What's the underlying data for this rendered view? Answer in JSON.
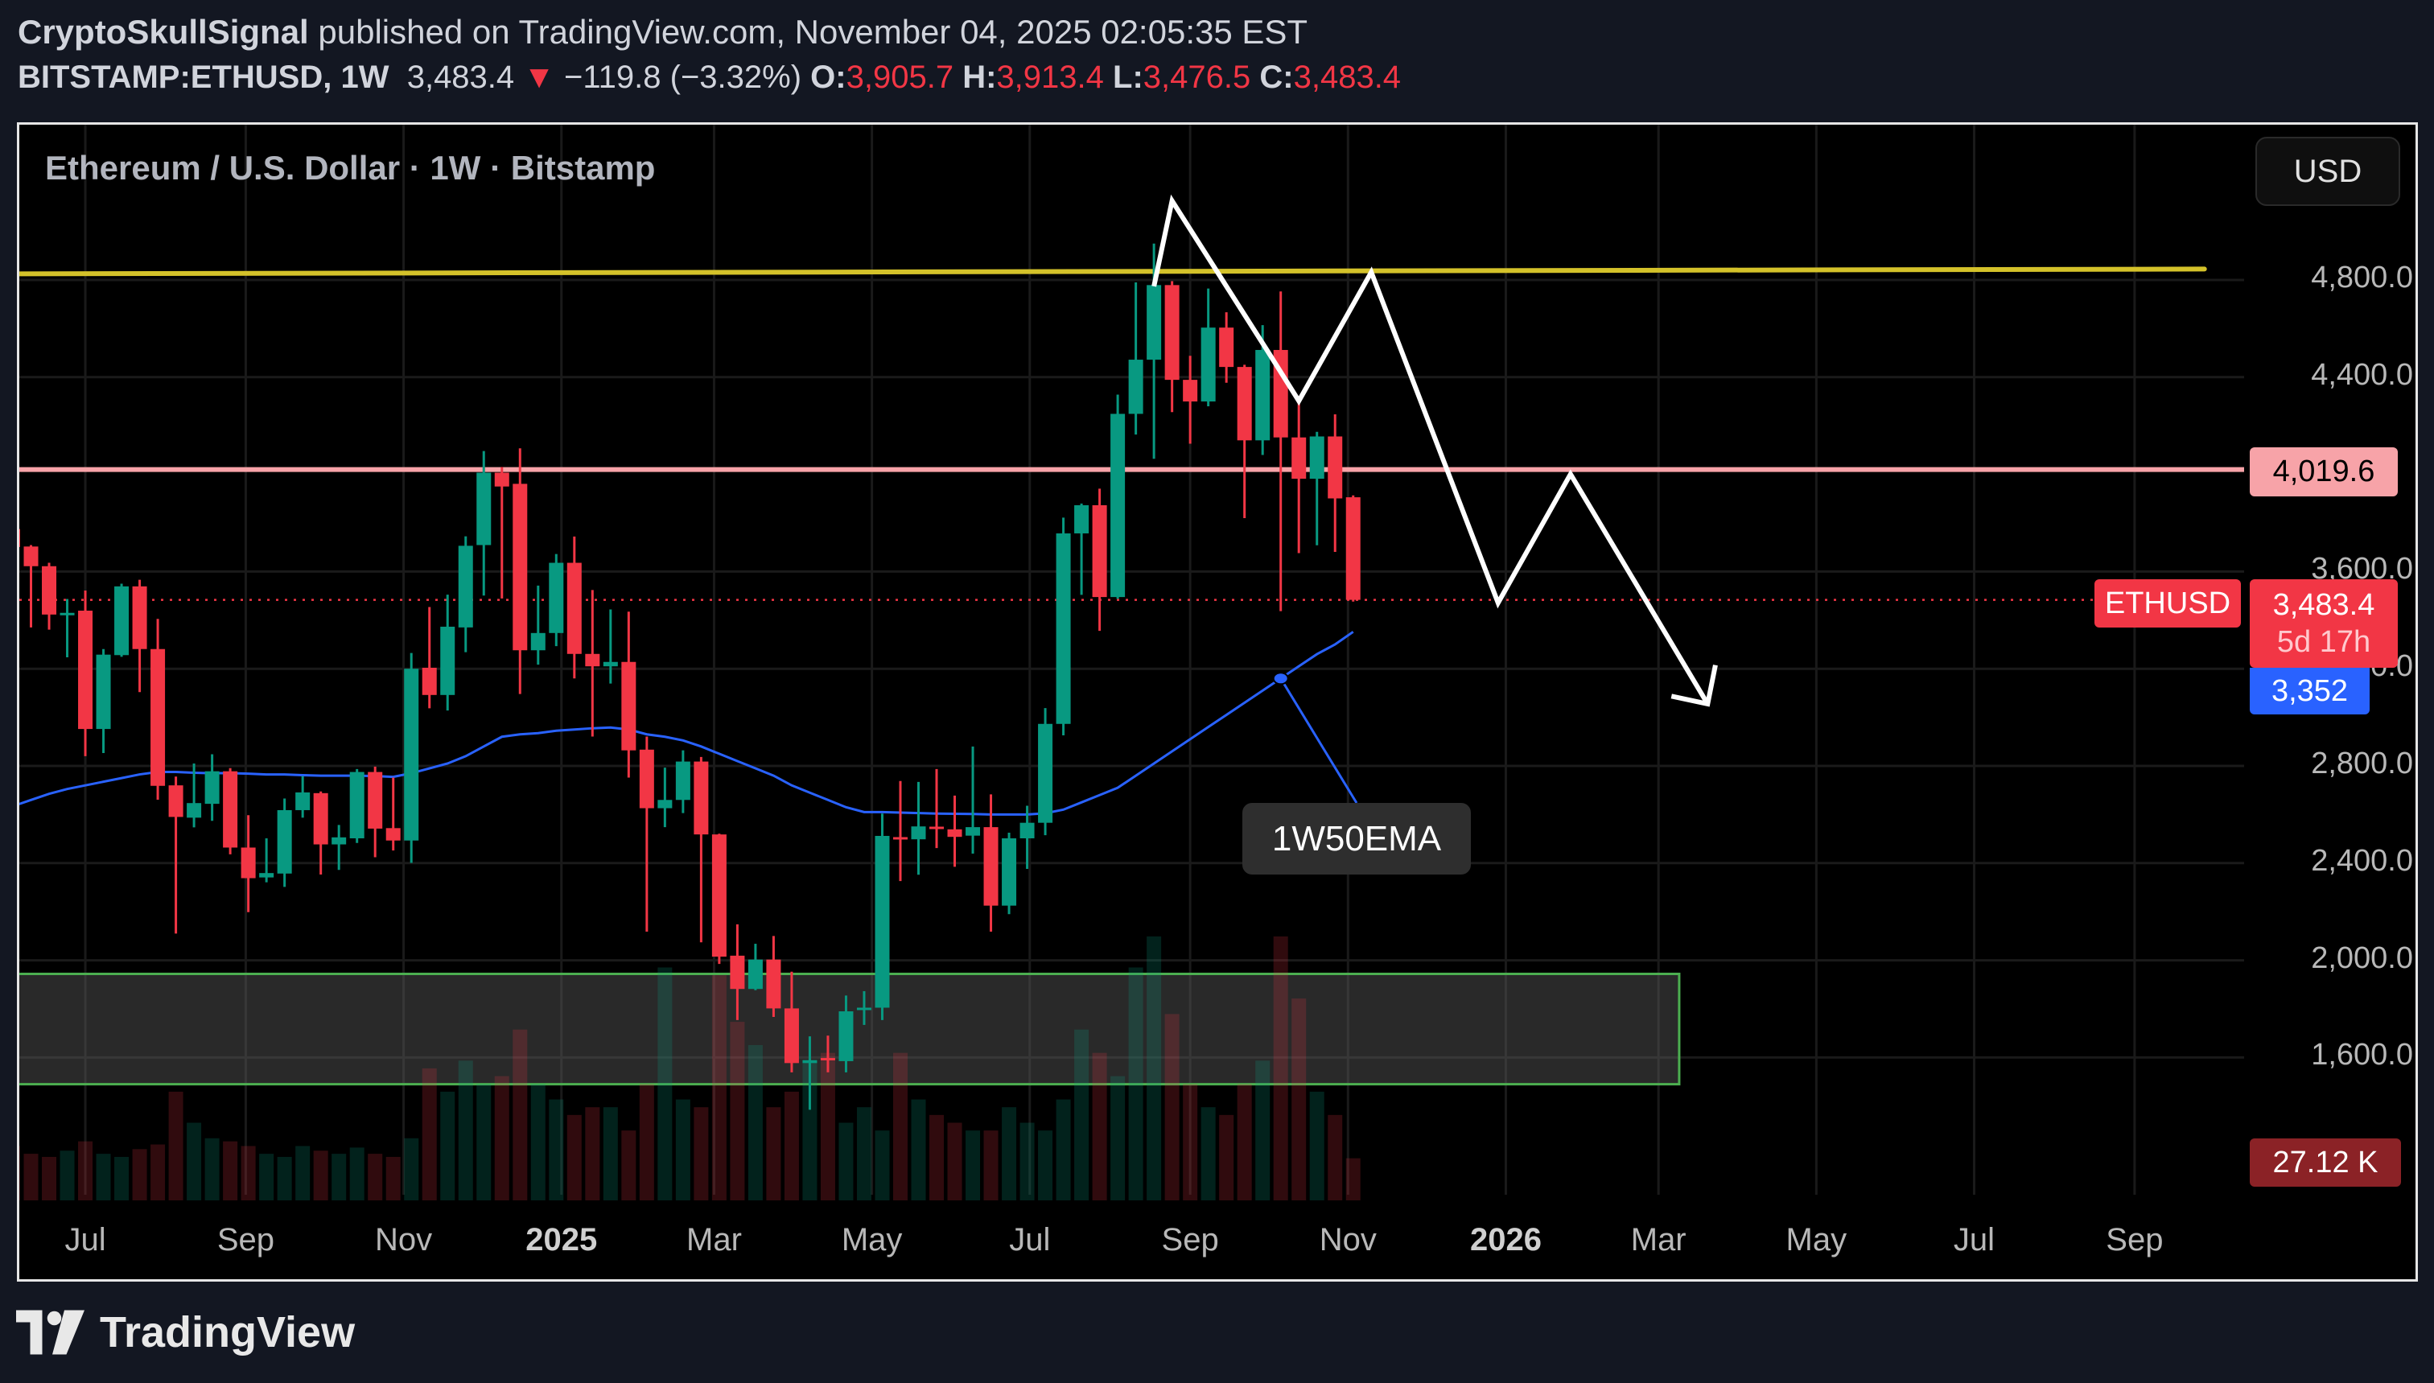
{
  "header": {
    "author": "CryptoSkullSignal",
    "published_text": "published on TradingView.com, November 04, 2025 02:05:35 EST",
    "symbol": "BITSTAMP:ETHUSD, 1W",
    "last": "3,483.4",
    "change": "−119.8 (−3.32%)",
    "o_label": "O:",
    "o": "3,905.7",
    "h_label": "H:",
    "h": "3,913.4",
    "l_label": "L:",
    "l": "3,476.5",
    "c_label": "C:",
    "c": "3,483.4",
    "down_arrow": "▼"
  },
  "chart_title": "Ethereum / U.S. Dollar · 1W · Bitstamp",
  "currency_button": "USD",
  "price_labels": {
    "resistance": "4,019.6",
    "symbol_tag": "ETHUSD",
    "current": "3,483.4",
    "countdown": "5d 17h",
    "ema": "3,352",
    "volume": "27.12 K"
  },
  "annotation_label": "1W50EMA",
  "footer": {
    "brand": "TradingView"
  },
  "colors": {
    "up": "#089981",
    "down": "#f23645",
    "ema": "#2962ff",
    "resistance": "#f7a3a8",
    "top_line": "#d4c22a",
    "zone_border": "#4caf50",
    "drawing": "#ffffff",
    "background": "#000000",
    "header_bg": "#131722"
  },
  "chart_data": {
    "type": "candlestick",
    "title": "Ethereum / U.S. Dollar · 1W · Bitstamp",
    "interval": "1W",
    "ylim": [
      1050,
      5250
    ],
    "grid": true,
    "price_ticks": [
      "4,800.0",
      "4,400.0",
      "3,600.0",
      "3,200.0",
      "2,800.0",
      "2,400.0",
      "2,000.0",
      "1,600.0"
    ],
    "price_tick_values": [
      4800,
      4400,
      3600,
      3200,
      2800,
      2400,
      2000,
      1600
    ],
    "time_ticks": [
      {
        "label": "Jul",
        "date": "2024-07-01"
      },
      {
        "label": "Sep",
        "date": "2024-09-01"
      },
      {
        "label": "Nov",
        "date": "2024-11-01"
      },
      {
        "label": "2025",
        "date": "2025-01-01",
        "bold": true
      },
      {
        "label": "Mar",
        "date": "2025-03-01"
      },
      {
        "label": "May",
        "date": "2025-05-01"
      },
      {
        "label": "Jul",
        "date": "2025-07-01"
      },
      {
        "label": "Sep",
        "date": "2025-09-01"
      },
      {
        "label": "Nov",
        "date": "2025-11-01"
      },
      {
        "label": "2026",
        "date": "2026-01-01",
        "bold": true
      },
      {
        "label": "Mar",
        "date": "2026-03-01"
      },
      {
        "label": "May",
        "date": "2026-05-01"
      },
      {
        "label": "Jul",
        "date": "2026-07-01"
      },
      {
        "label": "Sep",
        "date": "2026-09-01"
      }
    ],
    "candles_columns": [
      "date",
      "open",
      "high",
      "low",
      "close"
    ],
    "candles": [
      [
        "2024-06-03",
        3775,
        3880,
        3589,
        3701
      ],
      [
        "2024-06-10",
        3703,
        3709,
        3370,
        3622
      ],
      [
        "2024-06-17",
        3622,
        3636,
        3361,
        3423
      ],
      [
        "2024-06-24",
        3423,
        3487,
        3247,
        3430
      ],
      [
        "2024-07-01",
        3439,
        3522,
        2840,
        2952
      ],
      [
        "2024-07-08",
        2952,
        3281,
        2853,
        3258
      ],
      [
        "2024-07-15",
        3256,
        3550,
        3249,
        3539
      ],
      [
        "2024-07-22",
        3539,
        3566,
        3104,
        3281
      ],
      [
        "2024-07-29",
        3281,
        3405,
        2661,
        2718
      ],
      [
        "2024-08-05",
        2720,
        2756,
        2110,
        2590
      ],
      [
        "2024-08-12",
        2587,
        2810,
        2547,
        2647
      ],
      [
        "2024-08-19",
        2644,
        2848,
        2574,
        2778
      ],
      [
        "2024-08-26",
        2778,
        2791,
        2436,
        2464
      ],
      [
        "2024-09-02",
        2464,
        2597,
        2198,
        2338
      ],
      [
        "2024-09-09",
        2341,
        2502,
        2321,
        2359
      ],
      [
        "2024-09-16",
        2357,
        2666,
        2302,
        2618
      ],
      [
        "2024-09-23",
        2618,
        2758,
        2587,
        2691
      ],
      [
        "2024-09-30",
        2688,
        2695,
        2353,
        2477
      ],
      [
        "2024-10-07",
        2477,
        2557,
        2372,
        2506
      ],
      [
        "2024-10-14",
        2502,
        2787,
        2483,
        2775
      ],
      [
        "2024-10-21",
        2775,
        2797,
        2424,
        2542
      ],
      [
        "2024-10-28",
        2544,
        2752,
        2452,
        2493
      ],
      [
        "2024-11-04",
        2493,
        3265,
        2401,
        3200
      ],
      [
        "2024-11-11",
        3204,
        3454,
        3037,
        3092
      ],
      [
        "2024-11-18",
        3092,
        3505,
        3028,
        3373
      ],
      [
        "2024-11-25",
        3370,
        3745,
        3268,
        3706
      ],
      [
        "2024-12-02",
        3709,
        4096,
        3501,
        4007
      ],
      [
        "2024-12-09",
        4007,
        4030,
        3489,
        3950
      ],
      [
        "2024-12-16",
        3961,
        4107,
        3096,
        3276
      ],
      [
        "2024-12-23",
        3276,
        3542,
        3217,
        3347
      ],
      [
        "2024-12-30",
        3347,
        3672,
        3293,
        3636
      ],
      [
        "2025-01-06",
        3636,
        3744,
        3160,
        3261
      ],
      [
        "2025-01-13",
        3261,
        3524,
        2921,
        3210
      ],
      [
        "2025-01-20",
        3210,
        3444,
        3139,
        3228
      ],
      [
        "2025-01-27",
        3228,
        3435,
        2752,
        2864
      ],
      [
        "2025-02-03",
        2867,
        2921,
        2118,
        2626
      ],
      [
        "2025-02-10",
        2626,
        2793,
        2548,
        2660
      ],
      [
        "2025-02-17",
        2660,
        2864,
        2606,
        2818
      ],
      [
        "2025-02-24",
        2818,
        2837,
        2074,
        2518
      ],
      [
        "2025-03-03",
        2518,
        2521,
        1985,
        2015
      ],
      [
        "2025-03-10",
        2019,
        2148,
        1754,
        1882
      ],
      [
        "2025-03-17",
        1882,
        2068,
        1877,
        2003
      ],
      [
        "2025-03-24",
        2003,
        2100,
        1767,
        1802
      ],
      [
        "2025-03-31",
        1802,
        1953,
        1539,
        1577
      ],
      [
        "2025-04-07",
        1577,
        1687,
        1385,
        1589
      ],
      [
        "2025-04-14",
        1598,
        1690,
        1539,
        1592
      ],
      [
        "2025-04-21",
        1585,
        1855,
        1539,
        1790
      ],
      [
        "2025-04-28",
        1798,
        1873,
        1734,
        1805
      ],
      [
        "2025-05-05",
        1805,
        2604,
        1754,
        2512
      ],
      [
        "2025-05-12",
        2507,
        2738,
        2326,
        2503
      ],
      [
        "2025-05-19",
        2498,
        2734,
        2352,
        2551
      ],
      [
        "2025-05-26",
        2550,
        2787,
        2462,
        2543
      ],
      [
        "2025-06-02",
        2539,
        2678,
        2385,
        2508
      ],
      [
        "2025-06-09",
        2513,
        2880,
        2439,
        2548
      ],
      [
        "2025-06-16",
        2548,
        2683,
        2118,
        2225
      ],
      [
        "2025-06-23",
        2225,
        2525,
        2190,
        2502
      ],
      [
        "2025-06-30",
        2502,
        2636,
        2376,
        2566
      ],
      [
        "2025-07-07",
        2566,
        3038,
        2515,
        2973
      ],
      [
        "2025-07-14",
        2973,
        3822,
        2926,
        3757
      ],
      [
        "2025-07-21",
        3757,
        3880,
        3504,
        3873
      ],
      [
        "2025-07-28",
        3873,
        3941,
        3356,
        3495
      ],
      [
        "2025-08-04",
        3495,
        4328,
        3488,
        4249
      ],
      [
        "2025-08-11",
        4249,
        4790,
        4164,
        4472
      ],
      [
        "2025-08-18",
        4472,
        4950,
        4064,
        4779
      ],
      [
        "2025-08-25",
        4779,
        4795,
        4256,
        4389
      ],
      [
        "2025-09-01",
        4389,
        4488,
        4126,
        4300
      ],
      [
        "2025-09-08",
        4300,
        4765,
        4280,
        4604
      ],
      [
        "2025-09-15",
        4604,
        4667,
        4377,
        4442
      ],
      [
        "2025-09-22",
        4442,
        4451,
        3820,
        4140
      ],
      [
        "2025-09-29",
        4140,
        4614,
        4080,
        4512
      ],
      [
        "2025-10-06",
        4512,
        4753,
        3437,
        4152
      ],
      [
        "2025-10-13",
        4152,
        4296,
        3676,
        3982
      ],
      [
        "2025-10-20",
        3982,
        4175,
        3708,
        4156
      ],
      [
        "2025-10-27",
        4156,
        4247,
        3681,
        3901
      ],
      [
        "2025-11-03",
        3905.7,
        3913.4,
        3476.5,
        3483.4
      ]
    ],
    "volume_unit": "K",
    "volume": [
      35,
      30,
      28,
      32,
      38,
      30,
      28,
      33,
      36,
      70,
      50,
      40,
      38,
      35,
      30,
      28,
      35,
      32,
      30,
      34,
      30,
      28,
      40,
      85,
      70,
      90,
      75,
      80,
      110,
      75,
      65,
      55,
      60,
      60,
      45,
      75,
      150,
      65,
      60,
      145,
      115,
      100,
      60,
      70,
      90,
      95,
      50,
      60,
      45,
      95,
      65,
      55,
      50,
      45,
      45,
      60,
      50,
      45,
      65,
      110,
      95,
      80,
      150,
      170,
      120,
      75,
      60,
      55,
      75,
      90,
      170,
      130,
      70,
      55,
      27.12
    ],
    "ema_name": "1W50EMA",
    "ema": [
      2634,
      2660,
      2685,
      2705,
      2720,
      2735,
      2750,
      2765,
      2775,
      2775,
      2772,
      2770,
      2770,
      2768,
      2765,
      2765,
      2762,
      2760,
      2760,
      2760,
      2758,
      2755,
      2770,
      2790,
      2810,
      2840,
      2880,
      2920,
      2930,
      2935,
      2945,
      2950,
      2955,
      2958,
      2950,
      2930,
      2920,
      2905,
      2880,
      2850,
      2820,
      2790,
      2760,
      2720,
      2690,
      2660,
      2630,
      2610,
      2610,
      2608,
      2606,
      2604,
      2603,
      2602,
      2600,
      2600,
      2600,
      2605,
      2620,
      2650,
      2680,
      2710,
      2760,
      2810,
      2860,
      2910,
      2960,
      3010,
      3060,
      3110,
      3160,
      3210,
      3260,
      3300,
      3352
    ],
    "current_price": 3483.4,
    "drawings": {
      "resistance_line": 4019.6,
      "top_line": [
        [
          "2024-05-28",
          4825
        ],
        [
          "2026-09-28",
          4845
        ]
      ],
      "demand_zone": {
        "price_low": 1490,
        "price_high": 1944,
        "end_date": "2026-03-09"
      },
      "projection_path": [
        [
          "2025-08-18",
          4774
        ],
        [
          "2025-08-25",
          5126
        ],
        [
          "2025-10-01",
          4506
        ],
        [
          "2025-10-13",
          4302
        ],
        [
          "2025-11-10",
          4832
        ],
        [
          "2025-12-29",
          3471
        ],
        [
          "2026-01-26",
          4001
        ],
        [
          "2026-03-20",
          3055
        ]
      ],
      "arrow_head": [
        [
          "2026-03-06",
          3087
        ],
        [
          "2026-03-20",
          3055
        ],
        [
          "2026-03-23",
          3215
        ]
      ],
      "ema_callout_anchor": "2025-10-06"
    }
  }
}
